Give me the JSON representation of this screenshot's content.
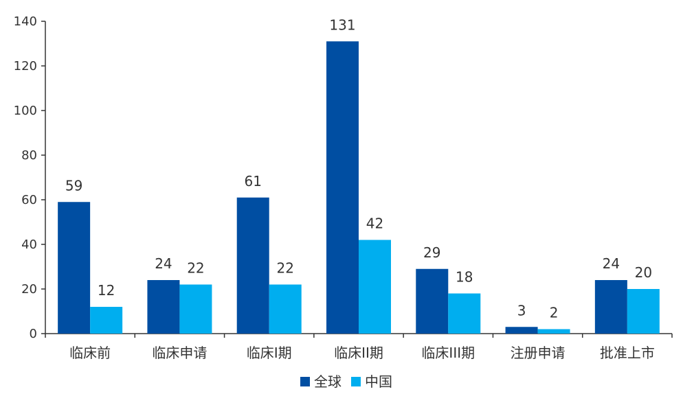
{
  "chart_data": {
    "type": "bar",
    "categories": [
      "临床前",
      "临床申请",
      "临床I期",
      "临床II期",
      "临床III期",
      "注册申请",
      "批准上市"
    ],
    "series": [
      {
        "name": "全球",
        "color": "#004EA2",
        "values": [
          59,
          24,
          61,
          131,
          29,
          3,
          24
        ]
      },
      {
        "name": "中国",
        "color": "#00AEEF",
        "values": [
          12,
          22,
          22,
          42,
          18,
          2,
          20
        ]
      }
    ],
    "ylim": [
      0,
      140
    ],
    "yticks": [
      0,
      20,
      40,
      60,
      80,
      100,
      120,
      140
    ],
    "title": "",
    "xlabel": "",
    "ylabel": "",
    "grid": false,
    "legend": "bottom-center",
    "data_labels": true
  }
}
